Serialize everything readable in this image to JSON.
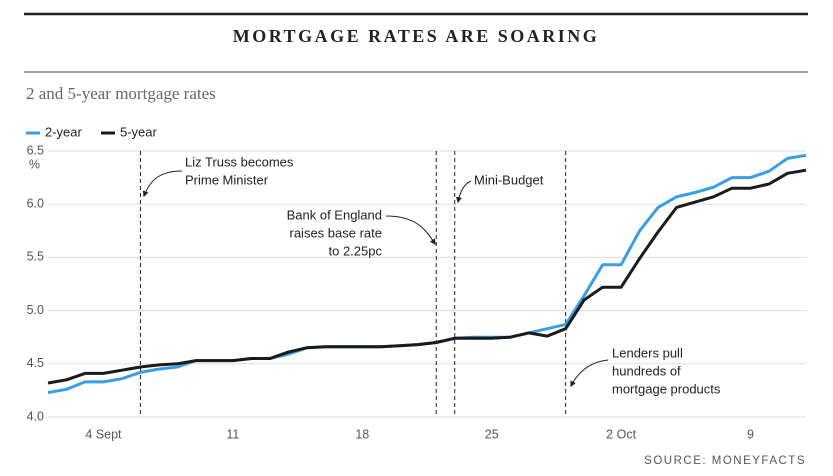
{
  "chart_data": {
    "type": "line",
    "title": "MORTGAGE RATES ARE SOARING",
    "subtitle": "2 and 5-year mortgage rates",
    "source": "SOURCE: MONEYFACTS",
    "y_unit": "%",
    "categories": [
      null,
      null,
      null,
      "4 Sept",
      null,
      null,
      null,
      null,
      null,
      null,
      "11",
      null,
      null,
      null,
      null,
      null,
      null,
      "18",
      null,
      null,
      null,
      null,
      null,
      null,
      "25",
      null,
      null,
      null,
      null,
      null,
      null,
      "2 Oct",
      null,
      null,
      null,
      null,
      null,
      null,
      "9",
      null,
      null,
      null
    ],
    "series": [
      {
        "name": "2-year",
        "color": "#3a9ee4",
        "values": [
          4.23,
          4.26,
          4.33,
          4.33,
          4.36,
          4.42,
          4.45,
          4.47,
          4.53,
          4.53,
          4.53,
          4.55,
          4.55,
          4.59,
          4.65,
          4.66,
          4.66,
          4.66,
          4.66,
          4.67,
          4.68,
          4.7,
          4.74,
          4.75,
          4.75,
          4.75,
          4.79,
          4.83,
          4.87,
          5.14,
          5.43,
          5.43,
          5.75,
          5.97,
          6.07,
          6.11,
          6.16,
          6.25,
          6.25,
          6.31,
          6.43,
          6.46
        ]
      },
      {
        "name": "5-year",
        "color": "#1a1a1a",
        "values": [
          4.32,
          4.35,
          4.41,
          4.41,
          4.44,
          4.47,
          4.49,
          4.5,
          4.53,
          4.53,
          4.53,
          4.55,
          4.55,
          4.61,
          4.65,
          4.66,
          4.66,
          4.66,
          4.66,
          4.67,
          4.68,
          4.7,
          4.74,
          4.74,
          4.74,
          4.75,
          4.79,
          4.76,
          4.83,
          5.1,
          5.22,
          5.22,
          5.49,
          5.74,
          5.97,
          6.02,
          6.07,
          6.15,
          6.15,
          6.19,
          6.29,
          6.32
        ]
      }
    ],
    "ylim": [
      4.0,
      6.5
    ],
    "yticks": [
      {
        "value": 4,
        "label": "4.0"
      },
      4.5,
      {
        "value": 5,
        "label": "5.0"
      },
      5.5,
      {
        "value": 6,
        "label": "6.0"
      },
      6.5
    ],
    "grid": true,
    "legend": "top-left",
    "annotations": [
      {
        "at": 5,
        "lines": [
          "Liz Truss becomes",
          "Prime Minister"
        ]
      },
      {
        "at": 21,
        "lines": [
          "Bank of England",
          "raises base rate",
          "to 2.25pc"
        ]
      },
      {
        "at": 22,
        "lines": [
          "Mini-Budget"
        ]
      },
      {
        "at": 28,
        "lines": [
          "Lenders pull",
          "hundreds of",
          "mortgage products"
        ]
      }
    ]
  }
}
